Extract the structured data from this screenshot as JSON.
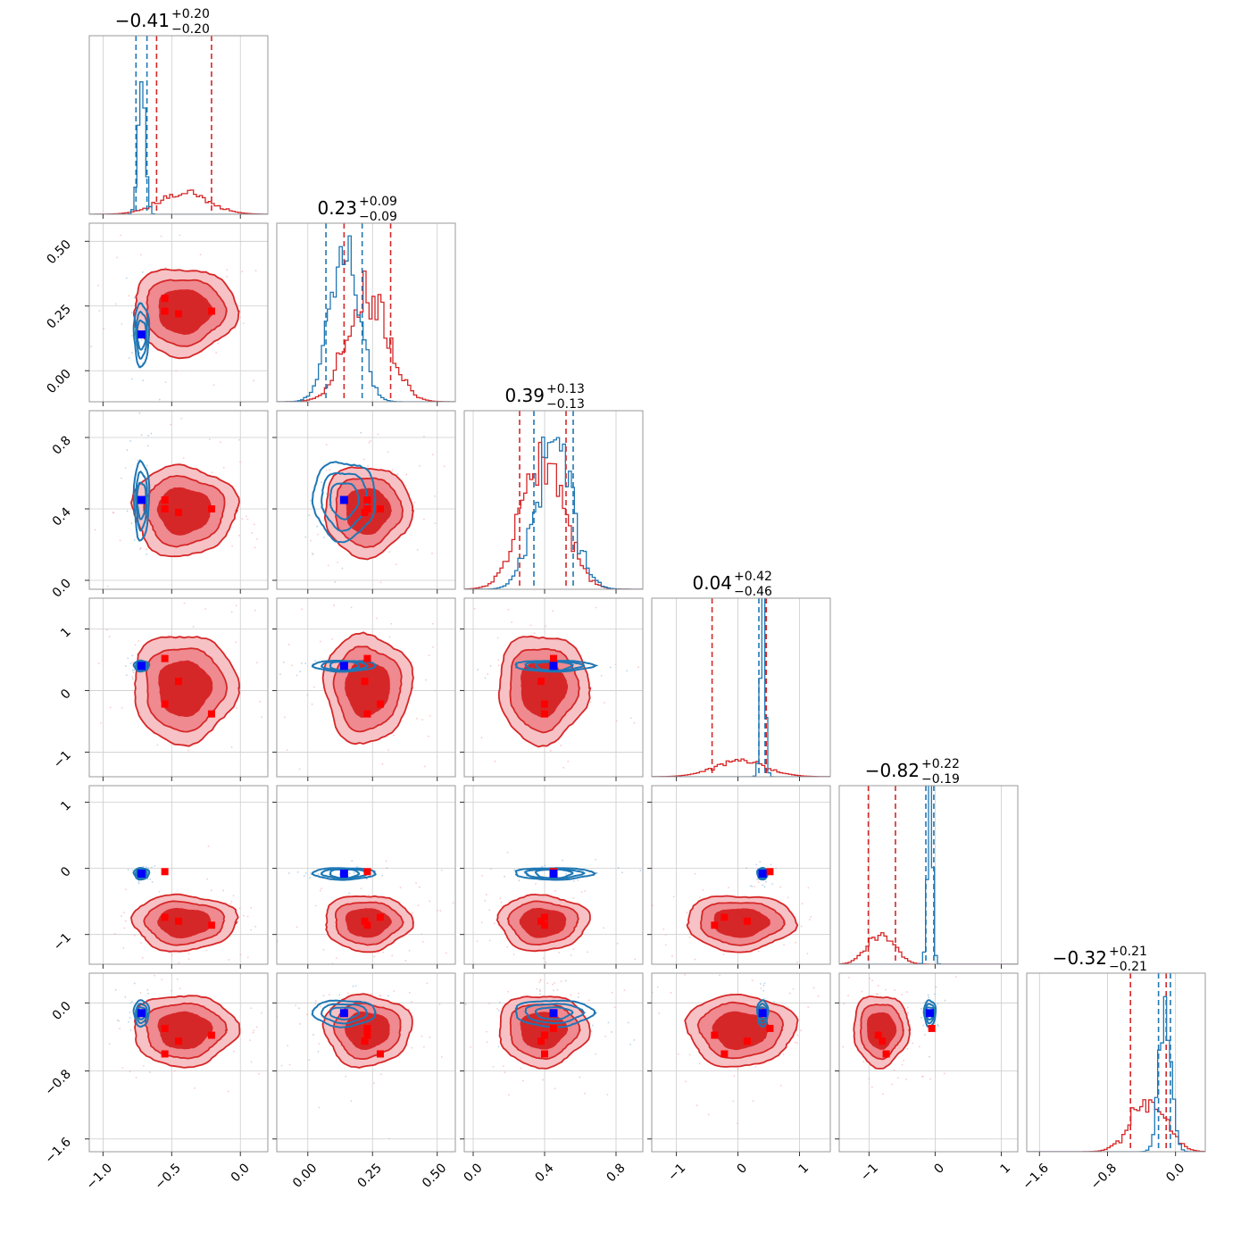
{
  "chart_data": {
    "type": "corner",
    "colors": {
      "blue_series": "#1f77b4",
      "red_series": "#d62728",
      "blue_marker": "#0000ff",
      "red_marker": "#ff0000"
    },
    "grid": true,
    "parameters": [
      {
        "title_main": "−0.41",
        "title_up": "+0.20",
        "title_dn": "−0.20",
        "range": [
          -1.1,
          0.2
        ],
        "ticks": [
          -1.0,
          -0.5,
          0.0
        ],
        "tick_labels": [
          "−1.0",
          "−0.5",
          "0.0"
        ],
        "blue": {
          "mean": -0.72,
          "sd": 0.025,
          "q": [
            -0.76,
            -0.68
          ]
        },
        "red": {
          "mean": -0.41,
          "sd": 0.18,
          "q": [
            -0.61,
            -0.21
          ]
        }
      },
      {
        "title_main": "0.23",
        "title_up": "+0.09",
        "title_dn": "−0.09",
        "range": [
          -0.12,
          0.57
        ],
        "ticks": [
          0.0,
          0.25,
          0.5
        ],
        "tick_labels": [
          "0.00",
          "0.25",
          "0.50"
        ],
        "blue": {
          "mean": 0.14,
          "sd": 0.055,
          "q": [
            0.07,
            0.21
          ]
        },
        "red": {
          "mean": 0.23,
          "sd": 0.08,
          "q": [
            0.14,
            0.32
          ]
        }
      },
      {
        "title_main": "0.39",
        "title_up": "+0.13",
        "title_dn": "−0.13",
        "range": [
          -0.05,
          0.95
        ],
        "ticks": [
          0.0,
          0.4,
          0.8
        ],
        "tick_labels": [
          "0.0",
          "0.4",
          "0.8"
        ],
        "blue": {
          "mean": 0.45,
          "sd": 0.1,
          "q": [
            0.34,
            0.56
          ]
        },
        "red": {
          "mean": 0.39,
          "sd": 0.12,
          "q": [
            0.26,
            0.52
          ]
        }
      },
      {
        "title_main": "0.04",
        "title_up": "+0.42",
        "title_dn": "−0.46",
        "range": [
          -1.4,
          1.5
        ],
        "ticks": [
          -1,
          0,
          1
        ],
        "tick_labels": [
          "−1",
          "0",
          "1"
        ],
        "blue": {
          "mean": 0.4,
          "sd": 0.04,
          "q": [
            0.34,
            0.44
          ]
        },
        "red": {
          "mean": 0.04,
          "sd": 0.42,
          "q": [
            -0.42,
            0.46
          ]
        }
      },
      {
        "title_main": "−0.82",
        "title_up": "+0.22",
        "title_dn": "−0.19",
        "range": [
          -1.45,
          1.25
        ],
        "ticks": [
          -1,
          0,
          1
        ],
        "tick_labels": [
          "−1",
          "0",
          "1"
        ],
        "blue": {
          "mean": -0.08,
          "sd": 0.04,
          "q": [
            -0.14,
            -0.02
          ]
        },
        "red": {
          "mean": -0.82,
          "sd": 0.2,
          "q": [
            -1.01,
            -0.6
          ]
        }
      },
      {
        "title_main": "−0.32",
        "title_up": "+0.21",
        "title_dn": "−0.21",
        "range": [
          -1.75,
          0.35
        ],
        "ticks": [
          -1.6,
          -0.8,
          0.0
        ],
        "tick_labels": [
          "−1.6",
          "−0.8",
          "0.0"
        ],
        "blue": {
          "mean": -0.12,
          "sd": 0.07,
          "q": [
            -0.2,
            -0.06
          ]
        },
        "red": {
          "mean": -0.32,
          "sd": 0.2,
          "q": [
            -0.53,
            -0.11
          ]
        }
      }
    ],
    "blue_markers": [
      -0.72,
      0.14,
      0.45,
      0.4,
      -0.08,
      -0.12
    ],
    "red_markers": [
      [
        -0.55,
        0.23,
        0.45,
        0.52,
        -0.05,
        -0.3
      ],
      [
        -0.45,
        0.22,
        0.38,
        0.15,
        -0.8,
        -0.45
      ],
      [
        -0.21,
        0.23,
        0.4,
        -0.38,
        -0.86,
        -0.38
      ],
      [
        -0.55,
        0.28,
        0.4,
        -0.22,
        -0.74,
        -0.6
      ]
    ]
  }
}
